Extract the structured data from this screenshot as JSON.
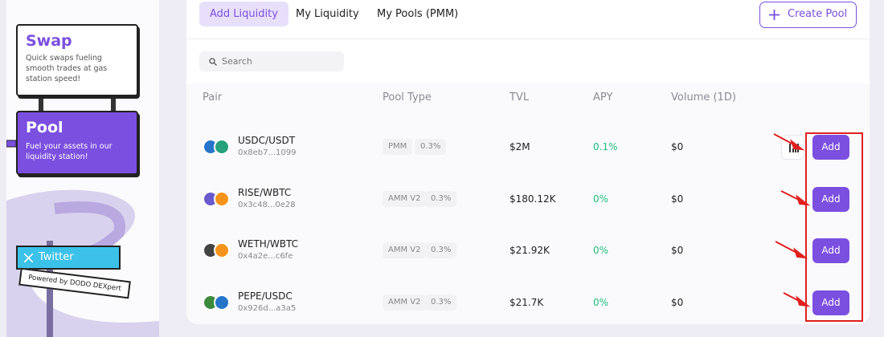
{
  "sidebar": {
    "swap": {
      "title": "Swap",
      "text": "Quick swaps fueling smooth trades at gas station speed!"
    },
    "pool": {
      "title": "Pool",
      "text": "Fuel your assets in our liquidity station!"
    },
    "twitter": "Twitter",
    "powered": "Powered by DODO DEXpert"
  },
  "tabs": [
    "Add Liquidity",
    "My Liquidity",
    "My Pools (PMM)"
  ],
  "create_pool": "Create Pool",
  "search_placeholder": "Search",
  "table": {
    "columns": [
      "Pair",
      "Pool Type",
      "TVL",
      "APY",
      "Volume (1D)"
    ],
    "rows": [
      {
        "pair": "USDC/USDT",
        "address": "0x8eb7...1099",
        "pool_type": "PMM",
        "fee": "0.3%",
        "tvl": "$2M",
        "apy": "0.1%",
        "volume": "$0",
        "action": "Add"
      },
      {
        "pair": "RISE/WBTC",
        "address": "0x3c48...0e28",
        "pool_type": "AMM V2",
        "fee": "0.3%",
        "tvl": "$180.12K",
        "apy": "0%",
        "volume": "$0",
        "action": "Add"
      },
      {
        "pair": "WETH/WBTC",
        "address": "0x4a2e...c6fe",
        "pool_type": "AMM V2",
        "fee": "0.3%",
        "tvl": "$21.92K",
        "apy": "0%",
        "volume": "$0",
        "action": "Add"
      },
      {
        "pair": "PEPE/USDC",
        "address": "0x926d...a3a5",
        "pool_type": "AMM V2",
        "fee": "0.3%",
        "tvl": "$21.7K",
        "apy": "0%",
        "volume": "$0",
        "action": "Add"
      }
    ]
  }
}
